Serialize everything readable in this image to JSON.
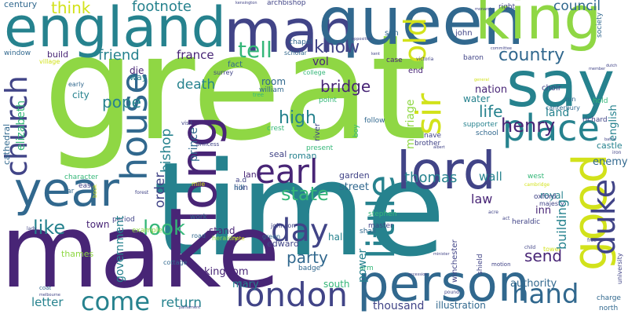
{
  "palette": {
    "dark_purple": "#482576",
    "indigo": "#414487",
    "blue": "#31688e",
    "teal": "#26828e",
    "green": "#35b779",
    "lime": "#8fd744",
    "yellow": "#d2e21b"
  },
  "words": {
    "great": "great",
    "time": "time",
    "make": "make",
    "england": "england",
    "man": "man",
    "queen": "queen",
    "king": "king",
    "say": "say",
    "long": "long",
    "year": "year",
    "lord": "lord",
    "person": "person",
    "good": "good",
    "house": "house",
    "church": "church",
    "earl": "earl",
    "little": "little",
    "day": "day",
    "london": "london",
    "place": "place",
    "old": "old",
    "sir": "sir",
    "duke": "duke",
    "come": "come",
    "hand": "hand",
    "country": "country",
    "tell": "tell",
    "know": "know",
    "henry": "henry",
    "look": "look",
    "state": "state",
    "party": "party",
    "like": "like",
    "friend": "friend",
    "footnote": "footnote",
    "council": "council",
    "think": "think",
    "france": "france",
    "pope": "pope",
    "death": "death",
    "high": "high",
    "bishop": "bishop",
    "life": "life",
    "bridge": "bridge",
    "thomas": "thomas",
    "marriage": "marriage",
    "order": "order",
    "building": "building",
    "send": "send",
    "return": "return",
    "government": "government",
    "kingdom": "kingdom",
    "mary": "mary",
    "letter": "letter",
    "power": "power",
    "thousand": "thousand",
    "authority": "authority",
    "illustration": "illustration",
    "elizabeth": "elizabeth",
    "prince": "prince",
    "law": "law",
    "wall": "wall",
    "street": "street",
    "english": "english",
    "land": "land",
    "city": "city",
    "nation": "nation",
    "water": "water",
    "vol": "vol",
    "room": "room",
    "enemy": "enemy",
    "castle": "castle",
    "royal": "royal",
    "inn": "inn",
    "oxford": "oxford",
    "west": "west",
    "stand": "stand",
    "hall": "hall",
    "south": "south",
    "roman": "roman",
    "garden": "garden",
    "lane": "lane",
    "edward": "edward",
    "seal": "seal",
    "lion": "lion",
    "town": "town",
    "thames": "thames",
    "century": "century",
    "window": "window",
    "build": "build",
    "die": "die",
    "way": "way",
    "john": "john",
    "son": "son",
    "fact": "fact",
    "chapel": "chapel",
    "archbishop": "archbishop",
    "right": "right",
    "society": "society",
    "end": "end",
    "case": "case",
    "baron": "baron",
    "choir": "choir",
    "hold": "hold",
    "richard": "richard",
    "canterbury": "canterbury",
    "run": "run",
    "school": "school",
    "supporter": "supporter",
    "brother": "brother",
    "nave": "nave",
    "cathedral": "cathedral",
    "character": "character",
    "east": "east",
    "far": "far",
    "hill": "hill",
    "a.d": "a.d",
    "william": "william",
    "follow": "follow",
    "point": "point",
    "present": "present",
    "river": "river",
    "boy": "boy",
    "college": "college",
    "crest": "crest",
    "heraldic": "heraldic",
    "master": "master",
    "shall": "shall",
    "badge": "badge",
    "arm": "arm",
    "winchester": "winchester",
    "shield": "shield",
    "charge": "charge",
    "north": "north",
    "university": "university",
    "majesty": "majesty",
    "stephen": "stephen",
    "johnson": "johnson",
    "heraldry": "heraldry",
    "road": "road",
    "work": "work",
    "period": "period",
    "example": "example",
    "green": "green",
    "cottage": "cottage",
    "motion": "motion",
    "tower": "tower",
    "mile": "mile",
    "princess": "princess",
    "visit": "visit",
    "early": "early",
    "scholar": "scholar",
    "surrey": "surrey",
    "village": "village",
    "tree": "tree",
    "book": "book",
    "lady": "lady",
    "coat": "coat",
    "acre": "acre",
    "pound": "pound",
    "act": "act",
    "forest": "forest",
    "note": "note",
    "victoria": "victoria",
    "opposition": "opposition",
    "kent": "kent",
    "committee": "committee",
    "iron": "iron",
    "member": "member",
    "free": "free",
    "child": "child",
    "cambridge": "cambridge",
    "albert": "albert",
    "minister": "minister",
    "parliament": "parliament",
    "accession": "accession",
    "battle": "battle",
    "kensington": "kensington",
    "melbourne": "melbourne",
    "dutch": "dutch",
    "general": "general",
    "monarch": "monarch"
  }
}
